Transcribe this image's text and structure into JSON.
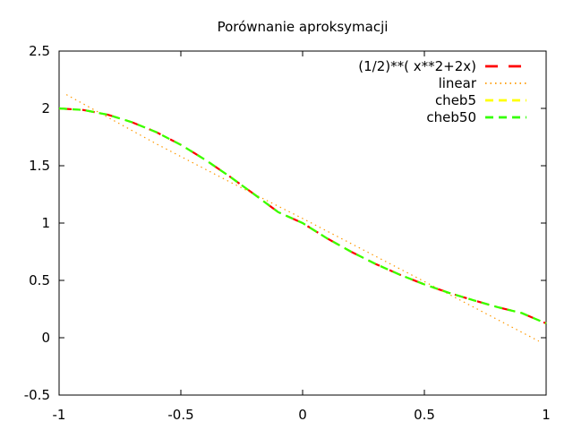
{
  "chart_data": {
    "type": "line",
    "title": "Porównanie aproksymacji",
    "xlabel": "",
    "ylabel": "",
    "xlim": [
      -1,
      1
    ],
    "ylim": [
      -0.5,
      2.5
    ],
    "x_ticks": [
      "-1",
      "-0.5",
      "0",
      "0.5",
      "1"
    ],
    "y_ticks": [
      "2.5",
      "2",
      "1.5",
      "1",
      "0.5",
      "0",
      "-0.5"
    ],
    "grid": false,
    "legend_position": "top-right",
    "series": [
      {
        "name": "(1/2)**( x**2+2x)",
        "color": "#ff0000",
        "dash": "long-dash",
        "x": [
          -1.0,
          -0.9,
          -0.8,
          -0.7,
          -0.6,
          -0.5,
          -0.4,
          -0.3,
          -0.2,
          -0.1,
          0.0,
          0.1,
          0.2,
          0.3,
          0.4,
          0.5,
          0.6,
          0.7,
          0.8,
          0.9,
          1.0
        ],
        "y": [
          2.0,
          1.986,
          1.945,
          1.879,
          1.792,
          1.682,
          1.552,
          1.407,
          1.253,
          1.095,
          1.0,
          0.867,
          0.749,
          0.643,
          0.549,
          0.465,
          0.392,
          0.328,
          0.267,
          0.215,
          0.125
        ]
      },
      {
        "name": "linear",
        "color": "#ff9900",
        "dash": "dotted",
        "x": [
          -0.97,
          -0.6,
          -0.3,
          0.0,
          0.3,
          0.6,
          0.97
        ],
        "y": [
          2.12,
          1.69,
          1.36,
          1.04,
          0.71,
          0.38,
          -0.03
        ]
      },
      {
        "name": "cheb5",
        "color": "#ffff00",
        "dash": "dashed",
        "x": [
          -1.0,
          -0.9,
          -0.8,
          -0.7,
          -0.6,
          -0.5,
          -0.4,
          -0.3,
          -0.2,
          -0.1,
          0.0,
          0.1,
          0.2,
          0.3,
          0.4,
          0.5,
          0.6,
          0.7,
          0.8,
          0.9,
          1.0
        ],
        "y": [
          2.0,
          1.986,
          1.945,
          1.879,
          1.792,
          1.682,
          1.552,
          1.407,
          1.253,
          1.095,
          1.0,
          0.867,
          0.749,
          0.643,
          0.549,
          0.465,
          0.392,
          0.328,
          0.267,
          0.215,
          0.125
        ]
      },
      {
        "name": "cheb50",
        "color": "#33ff00",
        "dash": "dashed",
        "x": [
          -1.0,
          -0.9,
          -0.8,
          -0.7,
          -0.6,
          -0.5,
          -0.4,
          -0.3,
          -0.2,
          -0.1,
          0.0,
          0.1,
          0.2,
          0.3,
          0.4,
          0.5,
          0.6,
          0.7,
          0.8,
          0.9,
          1.0
        ],
        "y": [
          2.0,
          1.986,
          1.945,
          1.879,
          1.792,
          1.682,
          1.552,
          1.407,
          1.253,
          1.095,
          1.0,
          0.867,
          0.749,
          0.643,
          0.549,
          0.465,
          0.392,
          0.328,
          0.267,
          0.215,
          0.125
        ]
      }
    ]
  }
}
